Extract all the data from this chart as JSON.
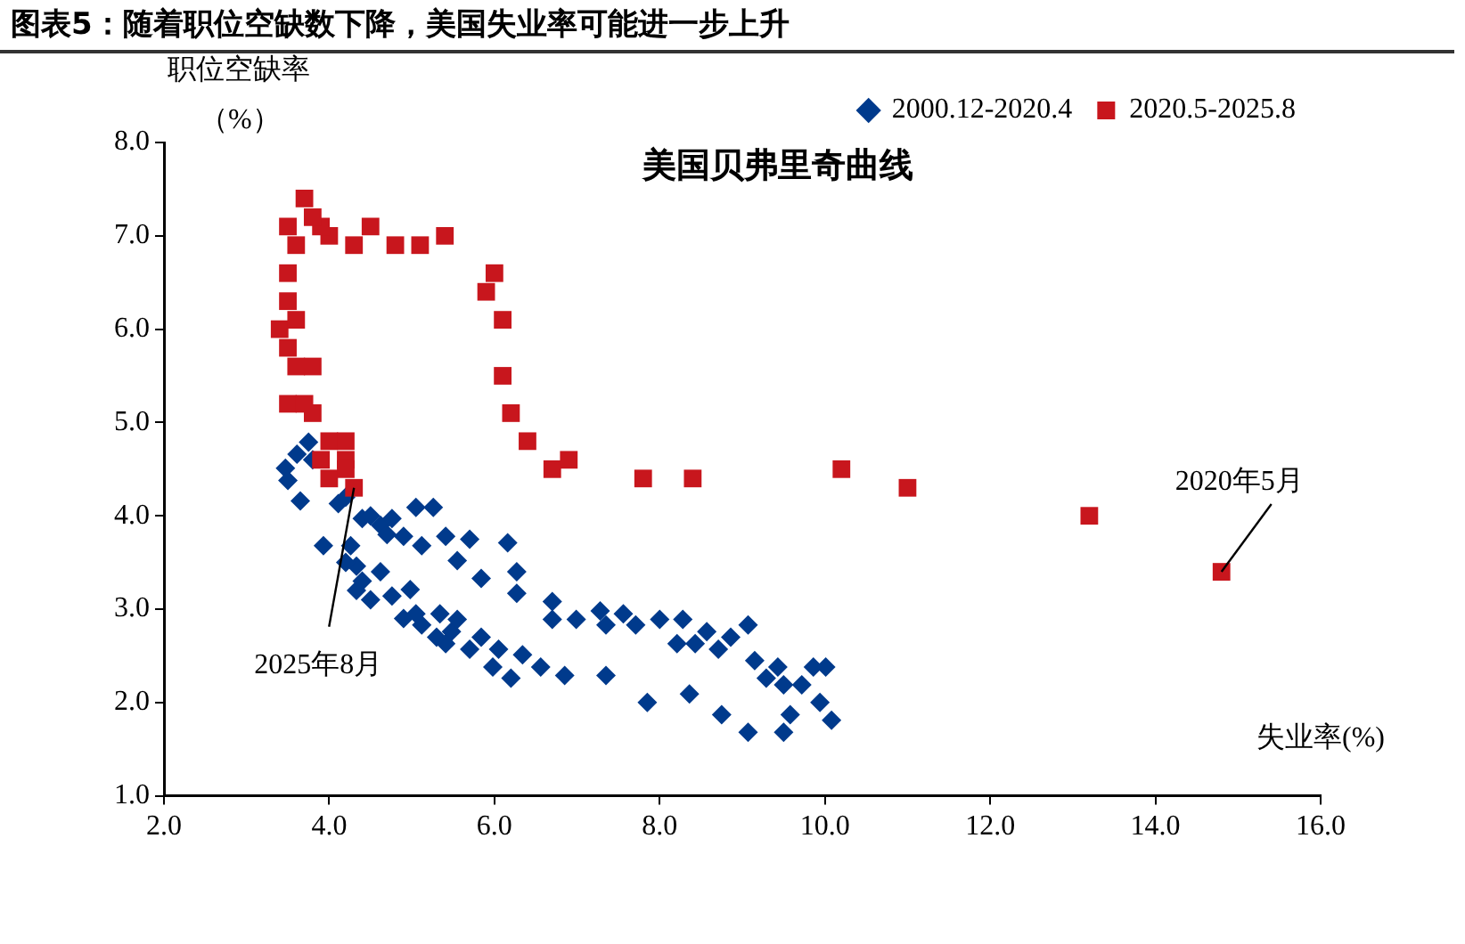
{
  "chart_data": {
    "type": "scatter",
    "title": "图表5：随着职位空缺数下降，美国失业率可能进一步上升",
    "subtitle": "美国贝弗里奇曲线",
    "xlabel": "失业率(%)",
    "ylabel": "职位空缺率（%）",
    "xlim": [
      2,
      16
    ],
    "xticks": [
      {
        "value": 2,
        "label": "2.0"
      },
      {
        "value": 4,
        "label": "4.0"
      },
      {
        "value": 6,
        "label": "6.0"
      },
      {
        "value": 8,
        "label": "8.0"
      },
      {
        "value": 10,
        "label": "10.0"
      },
      {
        "value": 12,
        "label": "12.0"
      },
      {
        "value": 14,
        "label": "14.0"
      },
      {
        "value": 16,
        "label": "16.0"
      }
    ],
    "ylim": [
      1,
      8
    ],
    "yticks": [
      {
        "value": 1,
        "label": "1.0"
      },
      {
        "value": 2,
        "label": "2.0"
      },
      {
        "value": 3,
        "label": "3.0"
      },
      {
        "value": 4,
        "label": "4.0"
      },
      {
        "value": 5,
        "label": "5.0"
      },
      {
        "value": 6,
        "label": "6.0"
      },
      {
        "value": 7,
        "label": "7.0"
      },
      {
        "value": 8,
        "label": "8.0"
      }
    ],
    "grid": false,
    "legend": "top right",
    "series": [
      {
        "name": "2000.12-2020.4",
        "color": "#003a8c",
        "marker": "diamond",
        "x": [
          3.47,
          3.61,
          3.75,
          3.5,
          3.65,
          4.11,
          3.93,
          4.26,
          4.4,
          4.62,
          4.76,
          5.05,
          5.26,
          4.9,
          5.12,
          5.41,
          5.7,
          5.55,
          5.84,
          6.16,
          6.27,
          6.27,
          4.33,
          4.33,
          4.62,
          4.76,
          4.98,
          5.05,
          5.12,
          5.34,
          5.48,
          5.55,
          5.41,
          5.7,
          5.84,
          5.98,
          6.2,
          6.05,
          6.34,
          6.56,
          6.7,
          6.7,
          6.99,
          6.85,
          7.28,
          7.35,
          7.35,
          7.56,
          7.71,
          8.0,
          7.85,
          8.28,
          8.36,
          8.57,
          8.71,
          8.86,
          9.07,
          8.75,
          9.07,
          9.15,
          9.43,
          9.5,
          9.58,
          9.72,
          9.86,
          10.01,
          9.94,
          10.08,
          9.5,
          9.29,
          8.21,
          8.43,
          3.8,
          4.2,
          4.5,
          4.7,
          4.4,
          4.2,
          4.5,
          4.9,
          5.3
        ],
        "values": [
          4.51,
          4.66,
          4.79,
          4.38,
          4.16,
          4.13,
          3.68,
          3.68,
          3.97,
          3.9,
          3.97,
          4.09,
          4.09,
          3.78,
          3.68,
          3.78,
          3.75,
          3.52,
          3.33,
          3.71,
          3.4,
          3.17,
          3.46,
          3.2,
          3.4,
          3.14,
          3.21,
          2.95,
          2.83,
          2.95,
          2.76,
          2.89,
          2.63,
          2.57,
          2.7,
          2.38,
          2.26,
          2.57,
          2.51,
          2.38,
          3.08,
          2.89,
          2.89,
          2.29,
          2.98,
          2.83,
          2.29,
          2.95,
          2.83,
          2.89,
          2.0,
          2.89,
          2.09,
          2.76,
          2.57,
          2.7,
          2.83,
          1.87,
          1.68,
          2.45,
          2.38,
          2.19,
          1.87,
          2.19,
          2.38,
          2.38,
          2.0,
          1.81,
          1.68,
          2.26,
          2.63,
          2.63,
          4.6,
          4.2,
          4.0,
          3.8,
          3.3,
          3.5,
          3.1,
          2.9,
          2.7
        ]
      },
      {
        "name": "2020.5-2025.8",
        "color": "#c8161d",
        "marker": "square",
        "x": [
          14.8,
          13.2,
          11.0,
          10.2,
          8.4,
          7.8,
          6.9,
          6.7,
          6.4,
          6.2,
          6.1,
          6.1,
          6.0,
          5.9,
          5.4,
          5.1,
          4.8,
          4.5,
          4.3,
          4.0,
          3.9,
          3.8,
          3.7,
          3.5,
          3.6,
          3.4,
          3.5,
          3.5,
          3.6,
          3.5,
          3.6,
          3.8,
          3.5,
          3.7,
          3.8,
          4.0,
          4.2,
          3.9,
          4.2,
          4.0,
          4.2,
          4.3
        ],
        "values": [
          3.4,
          4.0,
          4.3,
          4.5,
          4.4,
          4.4,
          4.6,
          4.5,
          4.8,
          5.1,
          5.5,
          6.1,
          6.6,
          6.4,
          7.0,
          6.9,
          6.9,
          7.1,
          6.9,
          7.0,
          7.1,
          7.2,
          7.4,
          7.1,
          6.9,
          6.0,
          6.6,
          6.3,
          6.1,
          5.8,
          5.6,
          5.6,
          5.2,
          5.2,
          5.1,
          4.8,
          4.8,
          4.6,
          4.6,
          4.4,
          4.5,
          4.3
        ]
      }
    ],
    "annotations": [
      {
        "text": "2020年5月",
        "x": 14.8,
        "y": 3.4
      },
      {
        "text": "2025年8月",
        "x": 4.3,
        "y": 4.3
      }
    ]
  }
}
